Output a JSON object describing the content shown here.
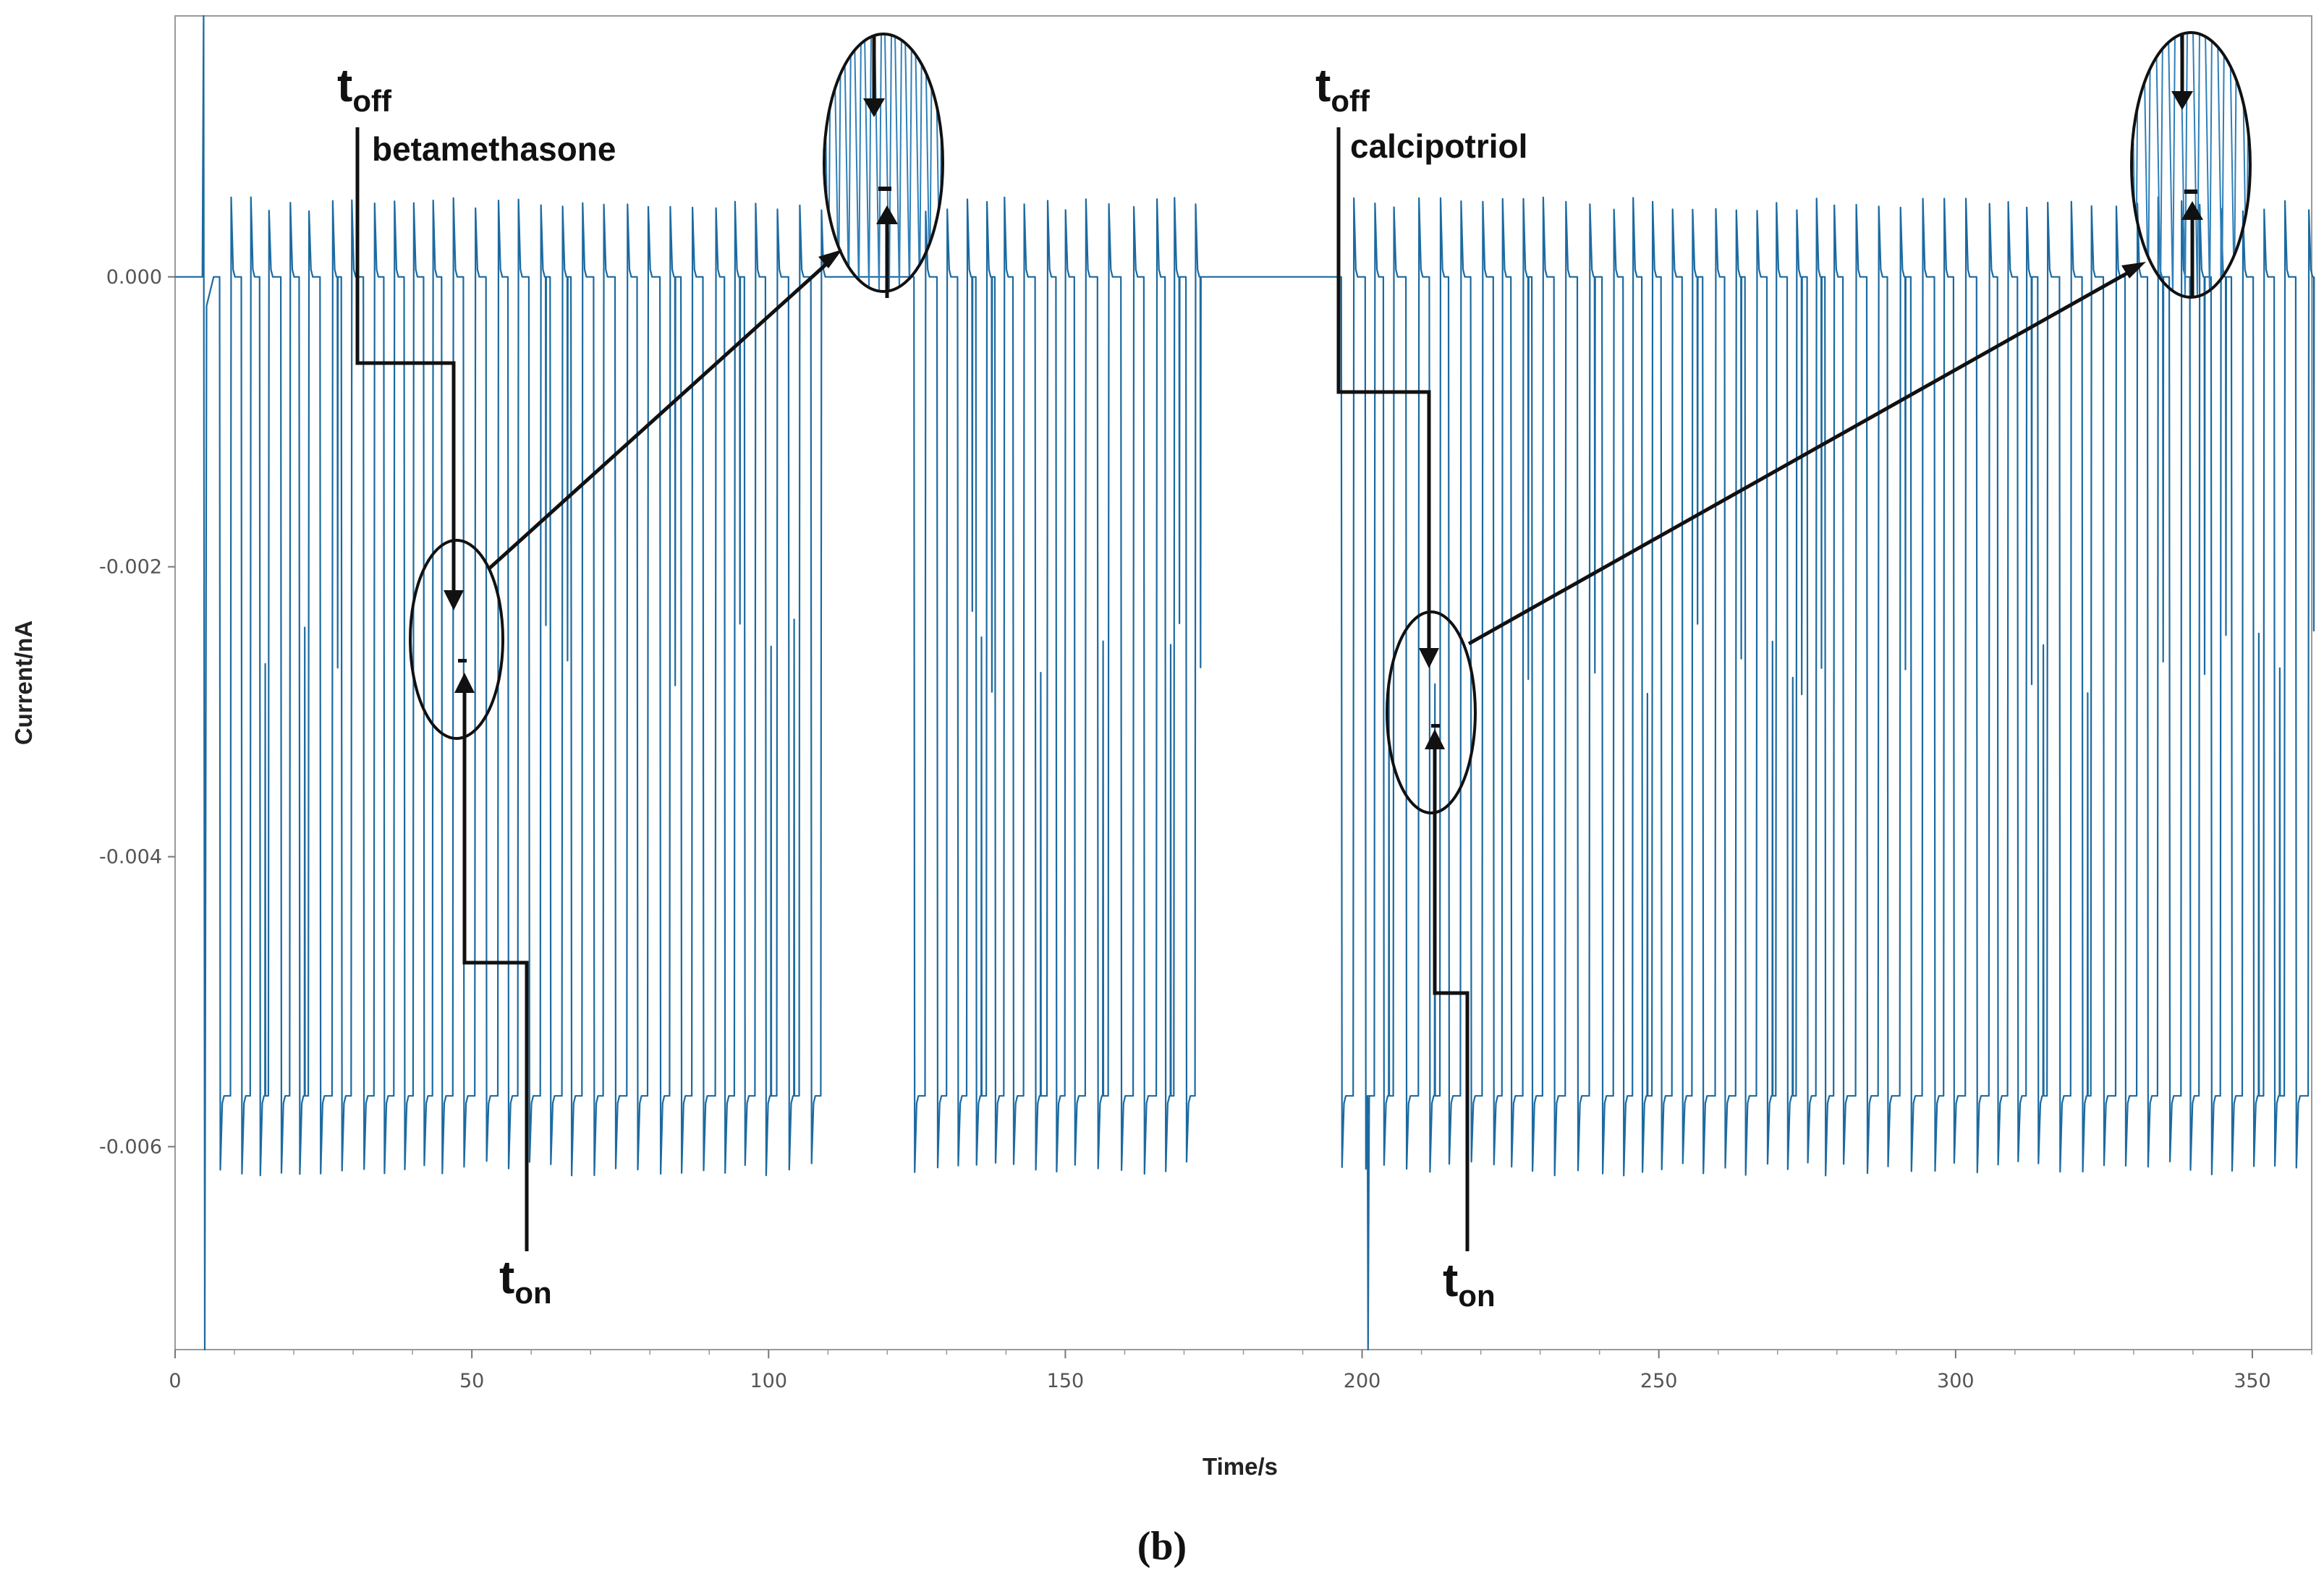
{
  "chart_data": {
    "type": "line",
    "title": "",
    "xlabel": "Time/s",
    "ylabel": "Current/nA",
    "xlim": [
      0,
      360
    ],
    "ylim": [
      -0.0074,
      0.0018
    ],
    "x_ticks": [
      0,
      50,
      100,
      150,
      200,
      250,
      300,
      350
    ],
    "x_tick_labels": [
      "0",
      "50",
      "100",
      "150",
      "200",
      "250",
      "300",
      "350"
    ],
    "y_ticks": [
      0.0,
      -0.002,
      -0.004,
      -0.006
    ],
    "y_tick_labels": [
      "0.000",
      "-0.002",
      "-0.004",
      "-0.006"
    ],
    "grid": false,
    "series": [
      {
        "name": "current trace",
        "color": "#1c6aa0",
        "baseline_open": 0.0,
        "baseline_blocked": -0.00565,
        "spike_overshoot_high": 0.00045,
        "spike_overshoot_low": -0.0061,
        "quiet_intervals": [
          [
            110,
            124
          ],
          [
            172,
            196
          ]
        ],
        "transients": [
          {
            "x": 5,
            "y_min": -0.0074,
            "y_max": 0.0018
          },
          {
            "x": 201,
            "y_min": -0.0074,
            "y_max": -0.0061
          }
        ]
      }
    ],
    "annotations": [
      {
        "label_main": "t",
        "label_sub": "off",
        "drug": "betamethasone",
        "event_time_s": 47.5
      },
      {
        "label_main": "t",
        "label_sub": "on",
        "event_time_s": 48.5
      },
      {
        "label_main": "t",
        "label_sub": "off",
        "drug": "calcipotriol",
        "event_time_s": 211
      },
      {
        "label_main": "t",
        "label_sub": "on",
        "event_time_s": 212
      }
    ]
  },
  "caption": "(b)",
  "colors": {
    "trace": "#1c6aa0",
    "trace_zoom": "#2f7fb8",
    "axis": "#666666",
    "annotation": "#111111"
  }
}
